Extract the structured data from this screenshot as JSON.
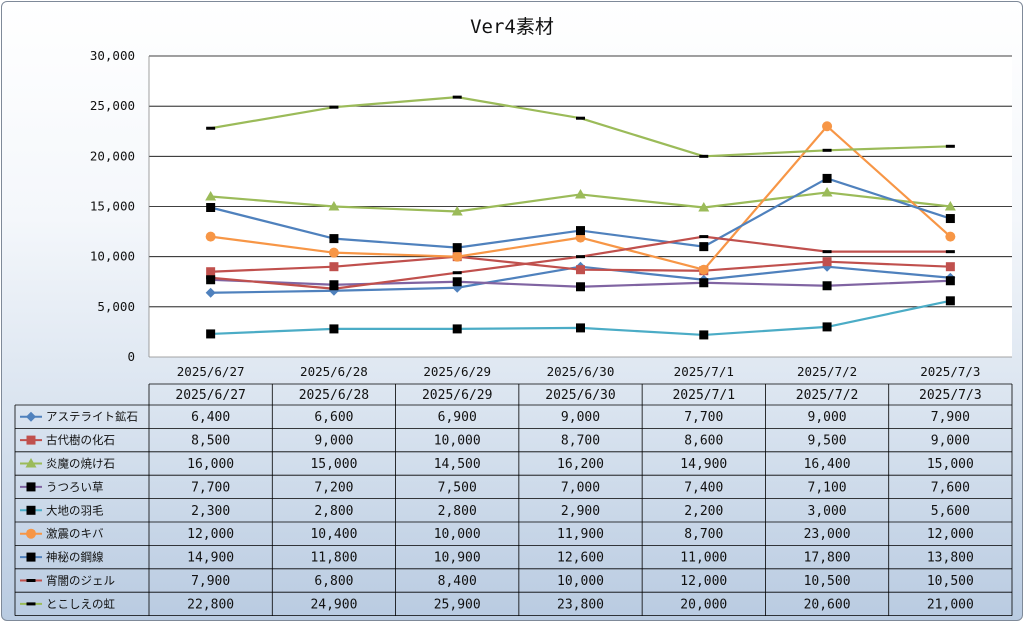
{
  "chart_data": {
    "type": "line",
    "title": "Ver4素材",
    "categories": [
      "2025/6/27",
      "2025/6/28",
      "2025/6/29",
      "2025/6/30",
      "2025/7/1",
      "2025/7/2",
      "2025/7/3"
    ],
    "ylim": [
      0,
      30000
    ],
    "yticks": [
      "0",
      "5,000",
      "10,000",
      "15,000",
      "20,000",
      "25,000",
      "30,000"
    ],
    "grid": true,
    "legend": "data-table",
    "series": [
      {
        "name": "アステライト鉱石",
        "color": "#4f81bd",
        "marker": "diamond",
        "values": [
          6400,
          6600,
          6900,
          9000,
          7700,
          9000,
          7900
        ],
        "labels": [
          "6,400",
          "6,600",
          "6,900",
          "9,000",
          "7,700",
          "9,000",
          "7,900"
        ]
      },
      {
        "name": "古代樹の化石",
        "color": "#c0504d",
        "marker": "square",
        "values": [
          8500,
          9000,
          10000,
          8700,
          8600,
          9500,
          9000
        ],
        "labels": [
          "8,500",
          "9,000",
          "10,000",
          "8,700",
          "8,600",
          "9,500",
          "9,000"
        ]
      },
      {
        "name": "炎魔の焼け石",
        "color": "#9bbb59",
        "marker": "triangle",
        "values": [
          16000,
          15000,
          14500,
          16200,
          14900,
          16400,
          15000
        ],
        "labels": [
          "16,000",
          "15,000",
          "14,500",
          "16,200",
          "14,900",
          "16,400",
          "15,000"
        ]
      },
      {
        "name": "うつろい草",
        "color": "#8064a2",
        "marker": "square-black",
        "values": [
          7700,
          7200,
          7500,
          7000,
          7400,
          7100,
          7600
        ],
        "labels": [
          "7,700",
          "7,200",
          "7,500",
          "7,000",
          "7,400",
          "7,100",
          "7,600"
        ]
      },
      {
        "name": "大地の羽毛",
        "color": "#4bacc6",
        "marker": "square-black",
        "values": [
          2300,
          2800,
          2800,
          2900,
          2200,
          3000,
          5600
        ],
        "labels": [
          "2,300",
          "2,800",
          "2,800",
          "2,900",
          "2,200",
          "3,000",
          "5,600"
        ]
      },
      {
        "name": "激震のキバ",
        "color": "#f79646",
        "marker": "circle",
        "values": [
          12000,
          10400,
          10000,
          11900,
          8700,
          23000,
          12000
        ],
        "labels": [
          "12,000",
          "10,400",
          "10,000",
          "11,900",
          "8,700",
          "23,000",
          "12,000"
        ]
      },
      {
        "name": "神秘の鋼線",
        "color": "#4f81bd",
        "marker": "square-black",
        "values": [
          14900,
          11800,
          10900,
          12600,
          11000,
          17800,
          13800
        ],
        "labels": [
          "14,900",
          "11,800",
          "10,900",
          "12,600",
          "11,000",
          "17,800",
          "13,800"
        ]
      },
      {
        "name": "宵闇のジェル",
        "color": "#c0504d",
        "marker": "dash",
        "values": [
          7900,
          6800,
          8400,
          10000,
          12000,
          10500,
          10500
        ],
        "labels": [
          "7,900",
          "6,800",
          "8,400",
          "10,000",
          "12,000",
          "10,500",
          "10,500"
        ]
      },
      {
        "name": "とこしえの虹",
        "color": "#9bbb59",
        "marker": "dash",
        "values": [
          22800,
          24900,
          25900,
          23800,
          20000,
          20600,
          21000
        ],
        "labels": [
          "22,800",
          "24,900",
          "25,900",
          "23,800",
          "20,000",
          "20,600",
          "21,000"
        ]
      }
    ]
  }
}
